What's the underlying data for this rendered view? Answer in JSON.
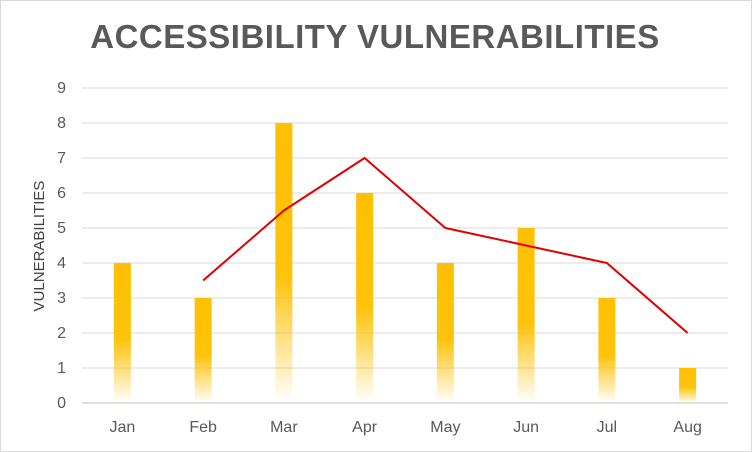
{
  "chart_data": {
    "type": "bar",
    "title": "ACCESSIBILITY VULNERABILITIES",
    "xlabel": "",
    "ylabel": "VULNERABILITIES",
    "categories": [
      "Jan",
      "Feb",
      "Mar",
      "Apr",
      "May",
      "Jun",
      "Jul",
      "Aug"
    ],
    "series": [
      {
        "type": "bar",
        "values": [
          4,
          3,
          8,
          6,
          4,
          5,
          3,
          1
        ],
        "color": "#FFC000"
      },
      {
        "type": "line",
        "values": [
          null,
          3.5,
          5.5,
          7,
          5,
          4.5,
          4,
          2
        ],
        "color": "#E00000"
      }
    ],
    "ylim": [
      0,
      9
    ],
    "yticks": [
      0,
      1,
      2,
      3,
      4,
      5,
      6,
      7,
      8,
      9
    ],
    "grid": true,
    "legend": "none"
  }
}
